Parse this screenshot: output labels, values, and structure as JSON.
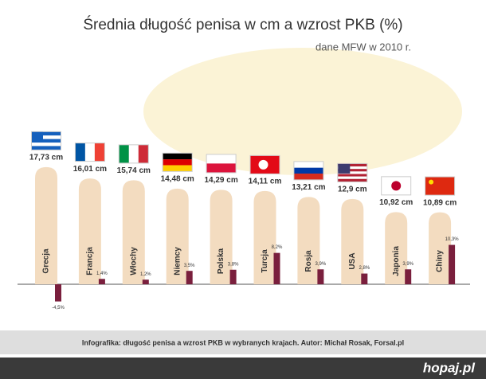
{
  "chart_data": {
    "type": "bar",
    "title": "Średnia długość penisa w cm a wzrost PKB (%)",
    "subtitle": "dane MFW w 2010 r.",
    "categories": [
      "Grecja",
      "Francja",
      "Włochy",
      "Niemcy",
      "Polska",
      "Turcja",
      "Rosja",
      "USA",
      "Japonia",
      "Chiny"
    ],
    "series": [
      {
        "color": "#f3dcc0",
        "values": [
          17.73,
          16.01,
          15.74,
          14.48,
          14.29,
          14.11,
          13.21,
          12.9,
          10.92,
          10.89
        ],
        "value_labels": [
          "17,73 cm",
          "16,01 cm",
          "15,74 cm",
          "14,48 cm",
          "14,29 cm",
          "14,11 cm",
          "13,21 cm",
          "12,9 cm",
          "10,92 cm",
          "10,89 cm"
        ]
      },
      {
        "color": "#7a1f3d",
        "values": [
          -4.5,
          1.4,
          1.2,
          3.5,
          3.8,
          8.2,
          3.9,
          2.8,
          3.9,
          10.3
        ],
        "value_labels": [
          "-4,5%",
          "1,4%",
          "1,2%",
          "3,5%",
          "3,8%",
          "8,2%",
          "3,9%",
          "2,8%",
          "3,9%",
          "10,3%"
        ]
      }
    ],
    "footer": "Infografika: długość penisa a wzrost PKB w wybranych krajach. Autor: Michał Rosak, Forsal.pl",
    "watermark": "hopaj.pl"
  }
}
